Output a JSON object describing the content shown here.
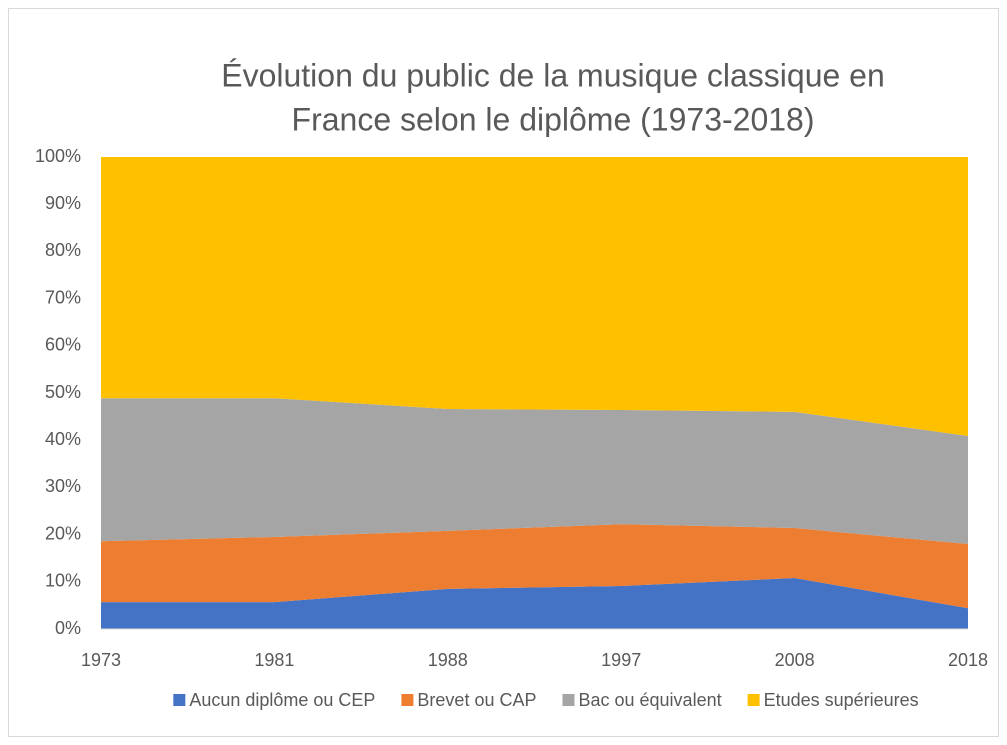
{
  "chart_data": {
    "type": "stacked_area",
    "title": [
      "Évolution du public de la musique classique en",
      "France selon le diplôme (1973-2018)"
    ],
    "categories": [
      "1973",
      "1981",
      "1988",
      "1997",
      "2008",
      "2018"
    ],
    "series": [
      {
        "name": "Aucun diplôme ou CEP",
        "color": "#4472c4",
        "values": [
          5.7,
          5.7,
          8.5,
          9.1,
          10.8,
          4.4
        ]
      },
      {
        "name": "Brevet ou CAP",
        "color": "#ed7d31",
        "values": [
          12.9,
          13.8,
          12.3,
          13.1,
          10.6,
          13.6
        ]
      },
      {
        "name": "Bac ou équivalent",
        "color": "#a5a5a5",
        "values": [
          30.3,
          29.4,
          25.8,
          24.2,
          24.6,
          22.9
        ]
      },
      {
        "name": "Etudes supérieures",
        "color": "#ffc000",
        "values": [
          51.1,
          51.1,
          53.4,
          53.6,
          54.0,
          59.1
        ]
      }
    ],
    "ylim": [
      0,
      100
    ],
    "yticks": [
      {
        "value": 0,
        "label": "0%"
      },
      {
        "value": 10,
        "label": "10%"
      },
      {
        "value": 20,
        "label": "20%"
      },
      {
        "value": 30,
        "label": "30%"
      },
      {
        "value": 40,
        "label": "40%"
      },
      {
        "value": 50,
        "label": "50%"
      },
      {
        "value": 60,
        "label": "60%"
      },
      {
        "value": 70,
        "label": "70%"
      },
      {
        "value": 80,
        "label": "80%"
      },
      {
        "value": 90,
        "label": "90%"
      },
      {
        "value": 100,
        "label": "100%"
      }
    ],
    "legend": "bottom"
  }
}
